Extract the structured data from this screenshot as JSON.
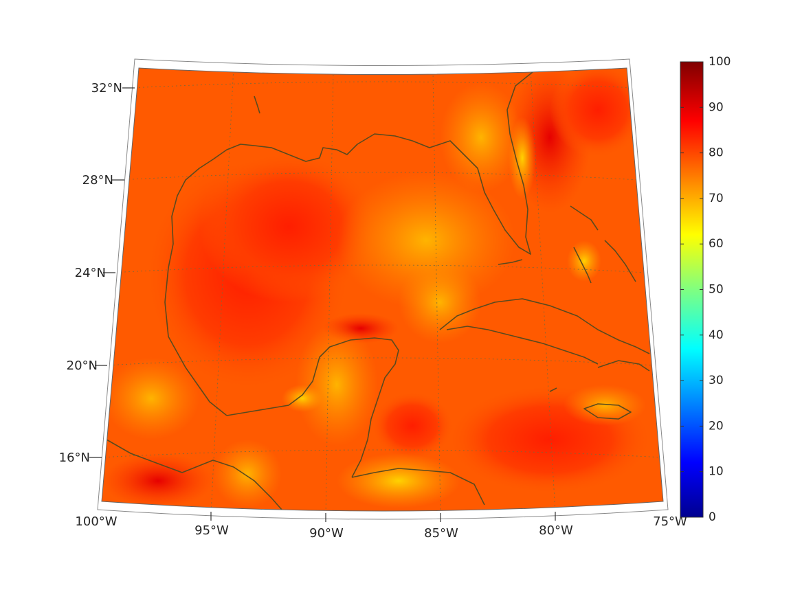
{
  "map": {
    "projection": "conic",
    "lon_range": [
      -100,
      -75
    ],
    "lat_range": [
      14,
      33
    ],
    "grid": true,
    "coastline_color": "#5a4a1e",
    "lon_labels": [
      "100°W",
      "95°W",
      "90°W",
      "85°W",
      "80°W",
      "75°W"
    ],
    "lat_labels": [
      "32°N",
      "28°N",
      "24°N",
      "20°N",
      "16°N"
    ],
    "field_dominant_colors": [
      "#ff5a00",
      "#ff2a00",
      "#ffaa00",
      "#ffd000"
    ]
  },
  "colorbar": {
    "colormap": "jet",
    "min": 0,
    "max": 100,
    "tick_labels": [
      "100",
      "90",
      "80",
      "70",
      "60",
      "50",
      "40",
      "30",
      "20",
      "10",
      "0"
    ]
  }
}
